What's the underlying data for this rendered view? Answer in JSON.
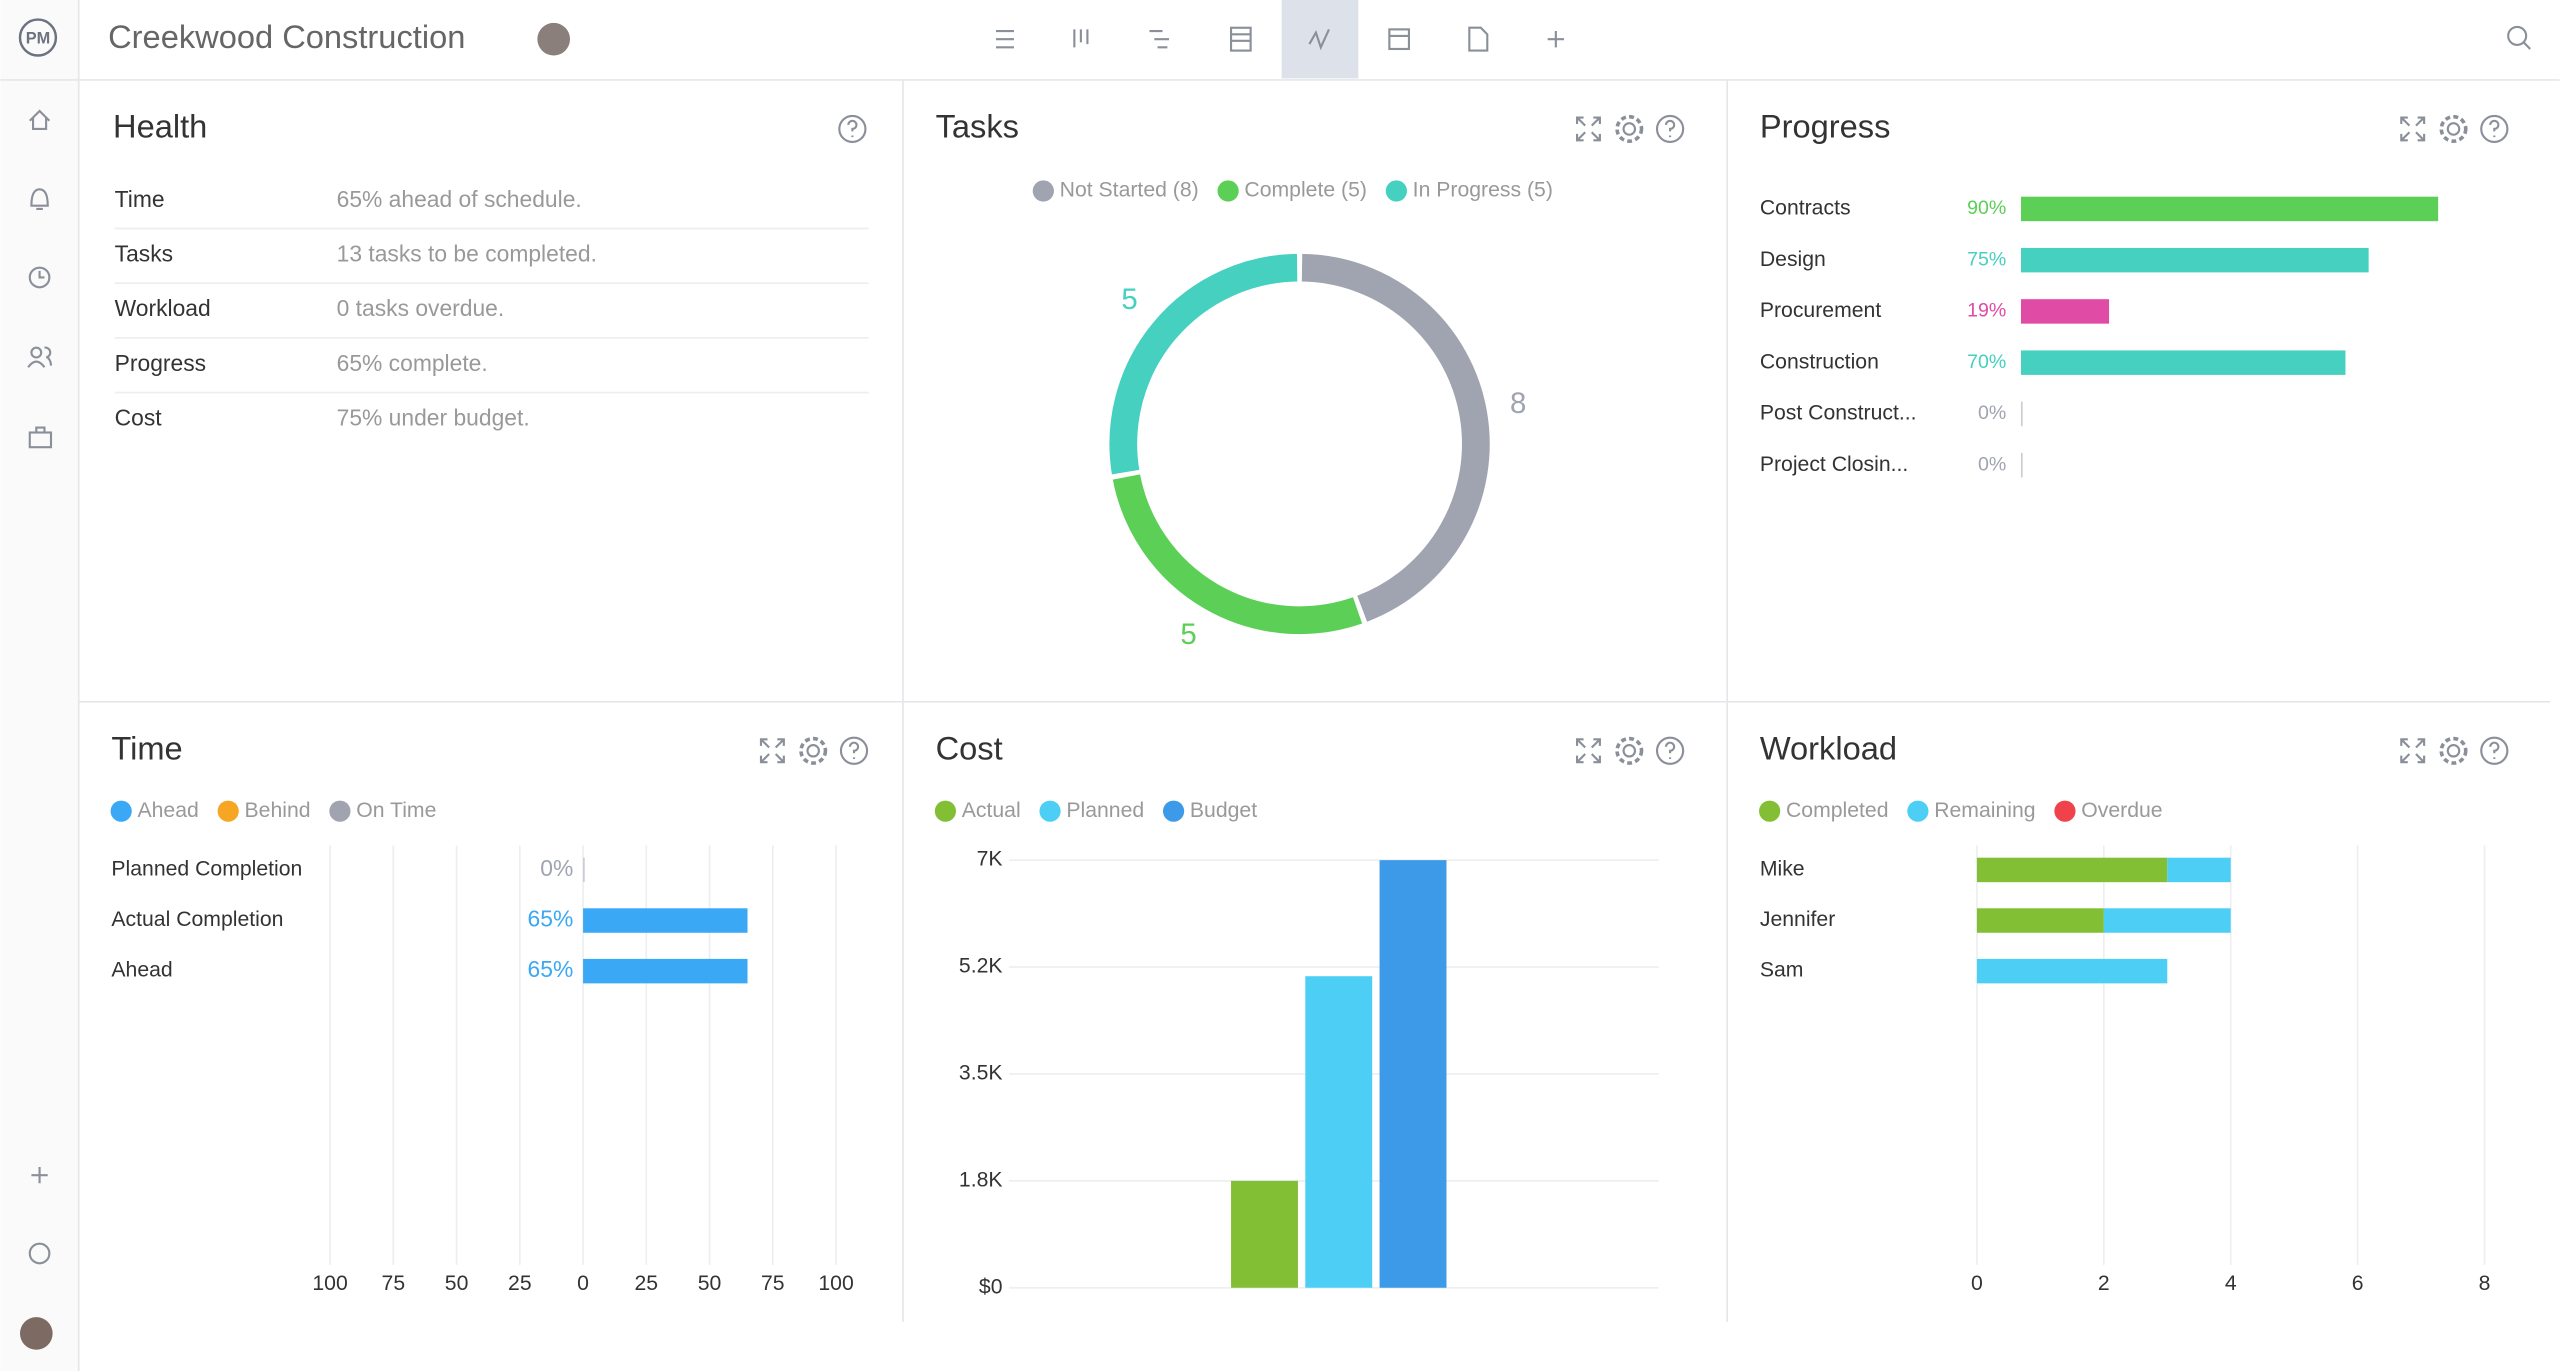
{
  "header": {
    "logo": "PM",
    "project": "Creekwood Construction"
  },
  "health": {
    "title": "Health",
    "rows": [
      {
        "label": "Time",
        "text": "65% ahead of schedule."
      },
      {
        "label": "Tasks",
        "text": "13 tasks to be completed."
      },
      {
        "label": "Workload",
        "text": "0 tasks overdue."
      },
      {
        "label": "Progress",
        "text": "65% complete."
      },
      {
        "label": "Cost",
        "text": "75% under budget."
      }
    ]
  },
  "chart_data": [
    {
      "type": "pie",
      "title": "Tasks",
      "donut": true,
      "categories": [
        "Not Started (8)",
        "Complete (5)",
        "In Progress (5)"
      ],
      "values": [
        8,
        5,
        5
      ],
      "colors": [
        "#a0a4b0",
        "#5ccf56",
        "#45d0c0"
      ]
    },
    {
      "type": "bar",
      "horizontal": true,
      "title": "Progress",
      "categories": [
        "Contracts",
        "Design",
        "Procurement",
        "Construction",
        "Post Construct...",
        "Project Closin..."
      ],
      "values": [
        90,
        75,
        19,
        70,
        0,
        0
      ],
      "value_labels": [
        "90%",
        "75%",
        "19%",
        "70%",
        "0%",
        "0%"
      ],
      "colors": [
        "#5ccf56",
        "#45d0c0",
        "#e04ba5",
        "#45d0c0",
        "#45d0c0",
        "#45d0c0"
      ],
      "xlim": [
        0,
        100
      ]
    },
    {
      "type": "bar",
      "horizontal": true,
      "title": "Time",
      "legend": [
        {
          "name": "Ahead",
          "color": "#3aa8f5"
        },
        {
          "name": "Behind",
          "color": "#f6a623"
        },
        {
          "name": "On Time",
          "color": "#a0a4b0"
        }
      ],
      "categories": [
        "Planned Completion",
        "Actual Completion",
        "Ahead"
      ],
      "values": [
        0,
        65,
        65
      ],
      "value_labels": [
        "0%",
        "65%",
        "65%"
      ],
      "color": "#3aa8f5",
      "xlim": [
        -100,
        100
      ],
      "xticks": [
        {
          "value": -100,
          "label": "100"
        },
        {
          "value": -75,
          "label": "75"
        },
        {
          "value": -50,
          "label": "50"
        },
        {
          "value": -25,
          "label": "25"
        },
        0,
        25,
        50,
        75,
        100
      ],
      "grid": true
    },
    {
      "type": "bar",
      "title": "Cost",
      "categories": [
        null
      ],
      "series": [
        {
          "name": "Actual",
          "color": "#82bf34",
          "values": [
            1750
          ]
        },
        {
          "name": "Planned",
          "color": "#4dcff5",
          "values": [
            5100
          ]
        },
        {
          "name": "Budget",
          "color": "#3d9ae8",
          "values": [
            7000
          ]
        }
      ],
      "ylim": [
        0,
        7000
      ],
      "yticks": [
        {
          "value": 0,
          "label": "$0"
        },
        {
          "value": 1750,
          "label": "1.8K"
        },
        {
          "value": 3500,
          "label": "3.5K"
        },
        {
          "value": 5250,
          "label": "5.2K"
        },
        {
          "value": 7000,
          "label": "7K"
        }
      ],
      "grid": true
    },
    {
      "type": "bar",
      "horizontal": true,
      "stacked": true,
      "title": "Workload",
      "categories": [
        "Mike",
        "Jennifer",
        "Sam"
      ],
      "series": [
        {
          "name": "Completed",
          "color": "#82bf34",
          "values": [
            3,
            2,
            0
          ]
        },
        {
          "name": "Remaining",
          "color": "#4dcff5",
          "values": [
            1,
            2,
            3
          ]
        },
        {
          "name": "Overdue",
          "color": "#f0424a",
          "values": [
            0,
            0,
            0
          ]
        }
      ],
      "xlim": [
        0,
        8
      ],
      "xticks": [
        0,
        2,
        4,
        6,
        8
      ],
      "grid": true
    }
  ]
}
